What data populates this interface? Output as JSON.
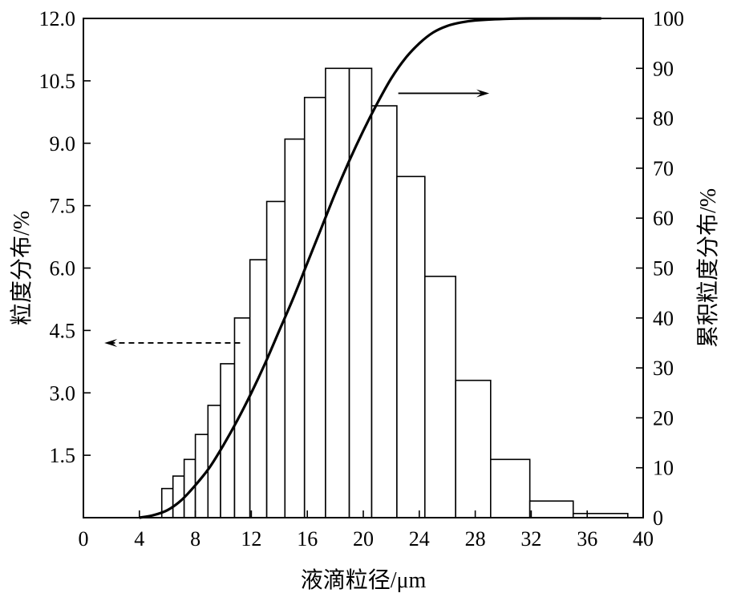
{
  "chart_data": {
    "type": "bar",
    "xlabel": "液滴粒径/μm",
    "ylabel_left": "粒度分布/%",
    "ylabel_right": "累积粒度分布/%",
    "xlim": [
      0,
      40
    ],
    "ylim_left": [
      0,
      12
    ],
    "ylim_right": [
      0,
      100
    ],
    "x_ticks": [
      "0",
      "4",
      "8",
      "12",
      "16",
      "20",
      "24",
      "28",
      "32",
      "36",
      "40"
    ],
    "y_left_ticks": [
      "1.5",
      "3.0",
      "4.5",
      "6.0",
      "7.5",
      "9.0",
      "10.5",
      "12.0"
    ],
    "y_right_ticks": [
      "0",
      "10",
      "20",
      "30",
      "40",
      "50",
      "60",
      "70",
      "80",
      "90",
      "100"
    ],
    "bins": [
      {
        "x0": 5.6,
        "x1": 6.4,
        "value": 0.7
      },
      {
        "x0": 6.4,
        "x1": 7.2,
        "value": 1.0
      },
      {
        "x0": 7.2,
        "x1": 8.0,
        "value": 1.4
      },
      {
        "x0": 8.0,
        "x1": 8.9,
        "value": 2.0
      },
      {
        "x0": 8.9,
        "x1": 9.8,
        "value": 2.7
      },
      {
        "x0": 9.8,
        "x1": 10.8,
        "value": 3.7
      },
      {
        "x0": 10.8,
        "x1": 11.9,
        "value": 4.8
      },
      {
        "x0": 11.9,
        "x1": 13.1,
        "value": 6.2
      },
      {
        "x0": 13.1,
        "x1": 14.4,
        "value": 7.6
      },
      {
        "x0": 14.4,
        "x1": 15.8,
        "value": 9.1
      },
      {
        "x0": 15.8,
        "x1": 17.3,
        "value": 10.1
      },
      {
        "x0": 17.3,
        "x1": 19.0,
        "value": 10.8
      },
      {
        "x0": 19.0,
        "x1": 20.6,
        "value": 10.8
      },
      {
        "x0": 20.6,
        "x1": 22.4,
        "value": 9.9
      },
      {
        "x0": 22.4,
        "x1": 24.4,
        "value": 8.2
      },
      {
        "x0": 24.4,
        "x1": 26.6,
        "value": 5.8
      },
      {
        "x0": 26.6,
        "x1": 29.1,
        "value": 3.3
      },
      {
        "x0": 29.1,
        "x1": 31.9,
        "value": 1.4
      },
      {
        "x0": 31.9,
        "x1": 35.0,
        "value": 0.4
      },
      {
        "x0": 35.0,
        "x1": 38.9,
        "value": 0.1
      }
    ],
    "cumulative_curve": {
      "axis": "right",
      "points": [
        [
          4,
          0
        ],
        [
          5,
          0.5
        ],
        [
          6,
          1.5
        ],
        [
          7,
          3.5
        ],
        [
          8,
          6.5
        ],
        [
          9,
          10
        ],
        [
          10,
          14.5
        ],
        [
          11,
          19.5
        ],
        [
          12,
          25
        ],
        [
          13,
          31
        ],
        [
          14,
          37.5
        ],
        [
          15,
          44
        ],
        [
          16,
          51
        ],
        [
          17,
          58
        ],
        [
          18,
          65
        ],
        [
          19,
          71.5
        ],
        [
          20,
          77.5
        ],
        [
          21,
          83
        ],
        [
          22,
          88
        ],
        [
          23,
          92
        ],
        [
          24,
          95
        ],
        [
          25,
          97.2
        ],
        [
          26,
          98.5
        ],
        [
          27,
          99.2
        ],
        [
          28,
          99.6
        ],
        [
          30,
          99.9
        ],
        [
          32,
          100
        ],
        [
          37,
          100
        ]
      ]
    },
    "annotations": [
      {
        "type": "arrow",
        "style": "solid",
        "direction": "right",
        "points_to": "right-axis",
        "from": [
          22.5,
          10.2
        ],
        "to": [
          29.0,
          10.2
        ]
      },
      {
        "type": "arrow",
        "style": "dashed",
        "direction": "left",
        "points_to": "left-axis",
        "from": [
          11.2,
          4.2
        ],
        "to": [
          1.5,
          4.2
        ]
      }
    ]
  }
}
